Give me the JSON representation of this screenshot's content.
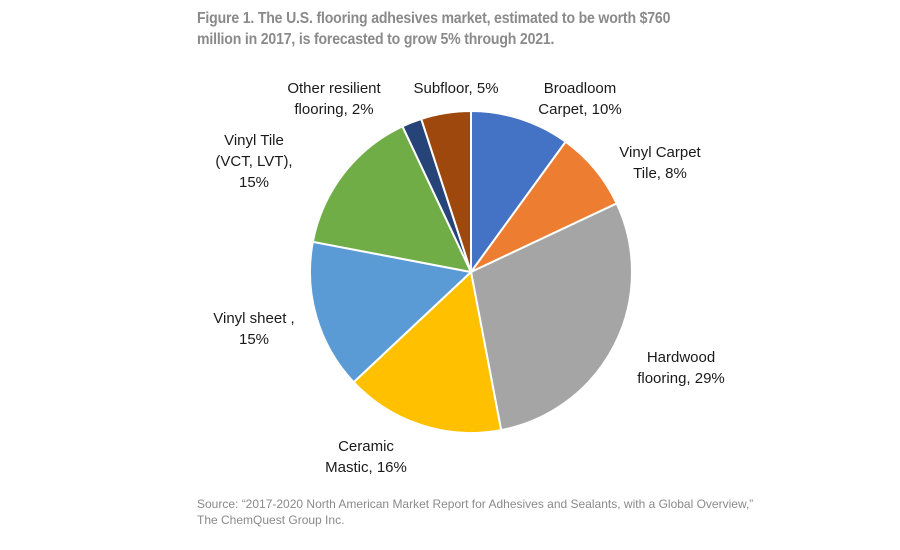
{
  "figure": {
    "title": "Figure 1. The U.S. flooring adhesives market, estimated to be worth $760 million in 2017, is forecasted to grow 5% through 2021.",
    "source": "Source: “2017-2020 North American Market Report for Adhesives and Sealants, with a Global Overview,” The ChemQuest Group Inc."
  },
  "chart_data": {
    "type": "pie",
    "title": "The U.S. flooring adhesives market",
    "start": "12 o'clock",
    "direction": "clockwise",
    "unit": "%",
    "slices": [
      {
        "name": "Broadloom Carpet",
        "value": 10,
        "label_lines": [
          "Broadloom",
          "Carpet, 10%"
        ],
        "color": "#4472c4"
      },
      {
        "name": "Vinyl Carpet Tile",
        "value": 8,
        "label_lines": [
          "Vinyl Carpet",
          "Tile, 8%"
        ],
        "color": "#ed7d31"
      },
      {
        "name": "Hardwood flooring",
        "value": 29,
        "label_lines": [
          "Hardwood",
          "flooring, 29%"
        ],
        "color": "#a5a5a5"
      },
      {
        "name": "Ceramic Mastic",
        "value": 16,
        "label_lines": [
          "Ceramic",
          "Mastic, 16%"
        ],
        "color": "#ffc000"
      },
      {
        "name": "Vinyl sheet",
        "value": 15,
        "label_lines": [
          "Vinyl sheet ,",
          "15%"
        ],
        "color": "#5b9bd5"
      },
      {
        "name": "Vinyl Tile (VCT, LVT)",
        "value": 15,
        "label_lines": [
          "Vinyl Tile",
          "(VCT, LVT),",
          "15%"
        ],
        "color": "#70ad47"
      },
      {
        "name": "Other resilient flooring",
        "value": 2,
        "label_lines": [
          "Other resilient",
          "flooring, 2%"
        ],
        "color": "#264478"
      },
      {
        "name": "Subfloor",
        "value": 5,
        "label_lines": [
          "Subfloor, 5%"
        ],
        "color": "#9e480e"
      }
    ]
  }
}
